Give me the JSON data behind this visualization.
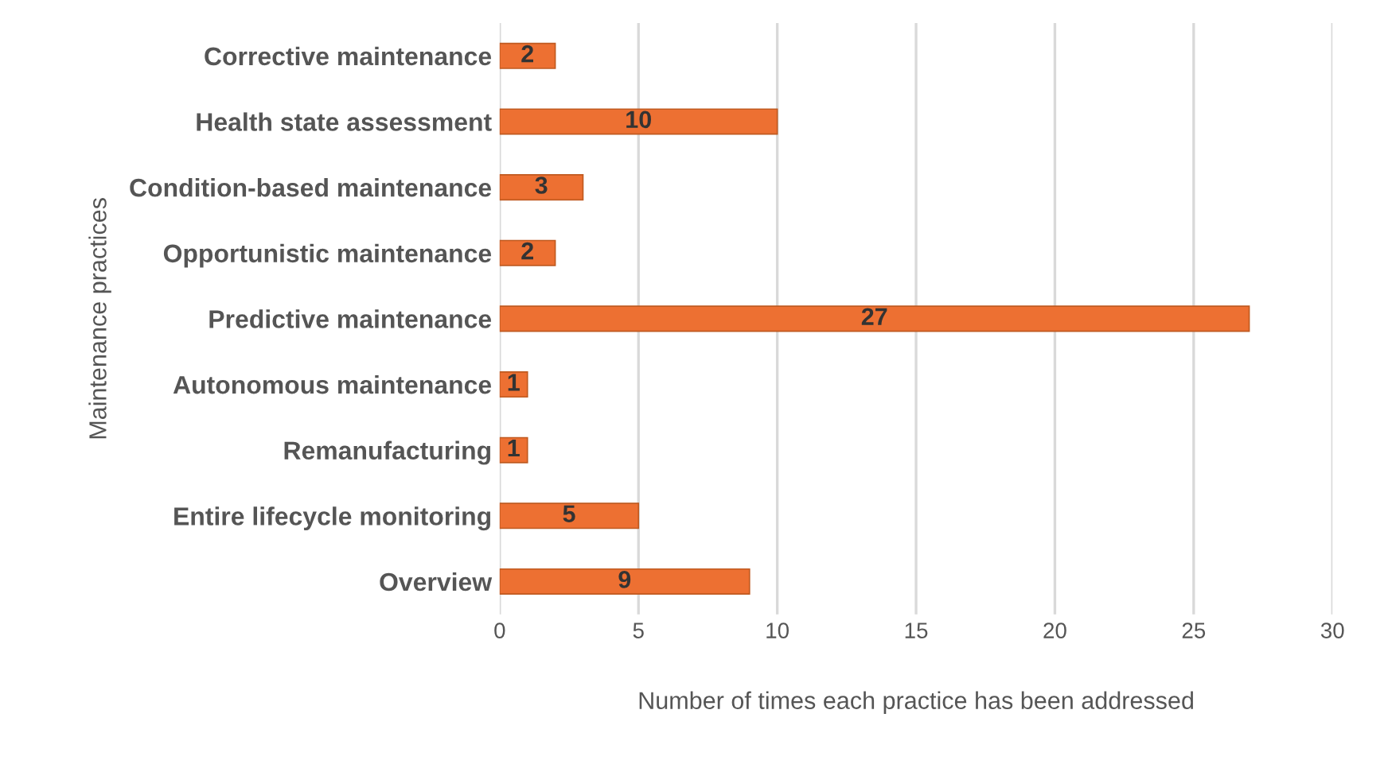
{
  "chart_data": {
    "type": "bar",
    "orientation": "horizontal",
    "xlabel": "Number of times each practice has been addressed",
    "ylabel": "Maintenance practices",
    "categories": [
      "Corrective maintenance",
      "Health state assessment",
      "Condition-based maintenance",
      "Opportunistic maintenance",
      "Predictive maintenance",
      "Autonomous maintenance",
      "Remanufacturing",
      "Entire lifecycle monitoring",
      "Overview"
    ],
    "values": [
      2,
      10,
      3,
      2,
      27,
      1,
      1,
      5,
      9
    ],
    "color": "#ed7032",
    "xlim": [
      0,
      30
    ],
    "xticks": [
      0,
      5,
      10,
      15,
      20,
      25,
      30
    ],
    "grid": "x",
    "data_labels": true
  }
}
